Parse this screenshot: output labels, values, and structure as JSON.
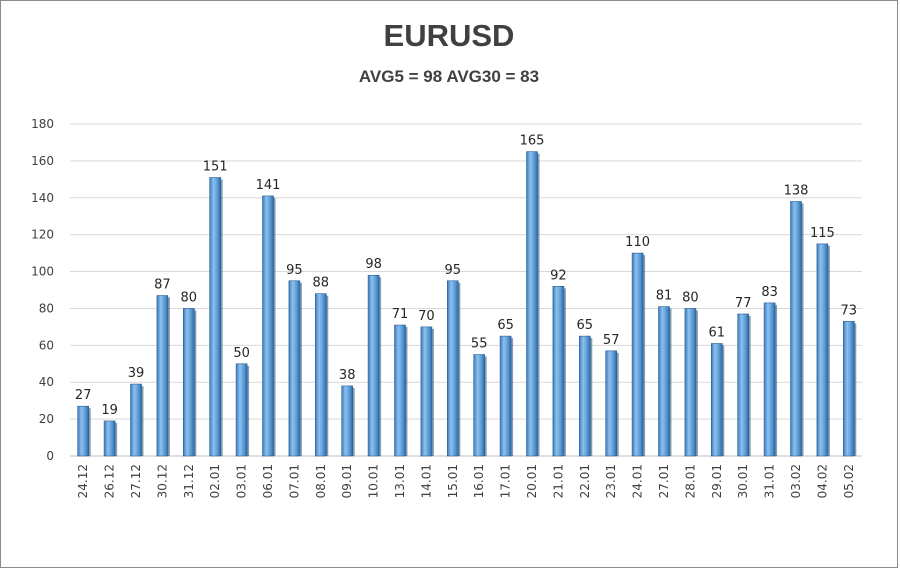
{
  "chart_data": {
    "type": "bar",
    "title": "EURUSD",
    "subtitle": "AVG5 = 98 AVG30 = 83",
    "xlabel": "",
    "ylabel": "",
    "ylim": [
      0,
      180
    ],
    "yticks": [
      0,
      20,
      40,
      60,
      80,
      100,
      120,
      140,
      160,
      180
    ],
    "grid": true,
    "legend": "none",
    "bar_color": "#5b9bd5",
    "categories": [
      "24.12",
      "26.12",
      "27.12",
      "30.12",
      "31.12",
      "02.01",
      "03.01",
      "06.01",
      "07.01",
      "08.01",
      "09.01",
      "10.01",
      "13.01",
      "14.01",
      "15.01",
      "16.01",
      "17.01",
      "20.01",
      "21.01",
      "22.01",
      "23.01",
      "24.01",
      "27.01",
      "28.01",
      "29.01",
      "30.01",
      "31.01",
      "03.02",
      "04.02",
      "05.02"
    ],
    "values": [
      27,
      19,
      39,
      87,
      80,
      151,
      50,
      141,
      95,
      88,
      38,
      98,
      71,
      70,
      95,
      55,
      65,
      165,
      92,
      65,
      57,
      110,
      81,
      80,
      61,
      77,
      83,
      138,
      115,
      73
    ]
  }
}
